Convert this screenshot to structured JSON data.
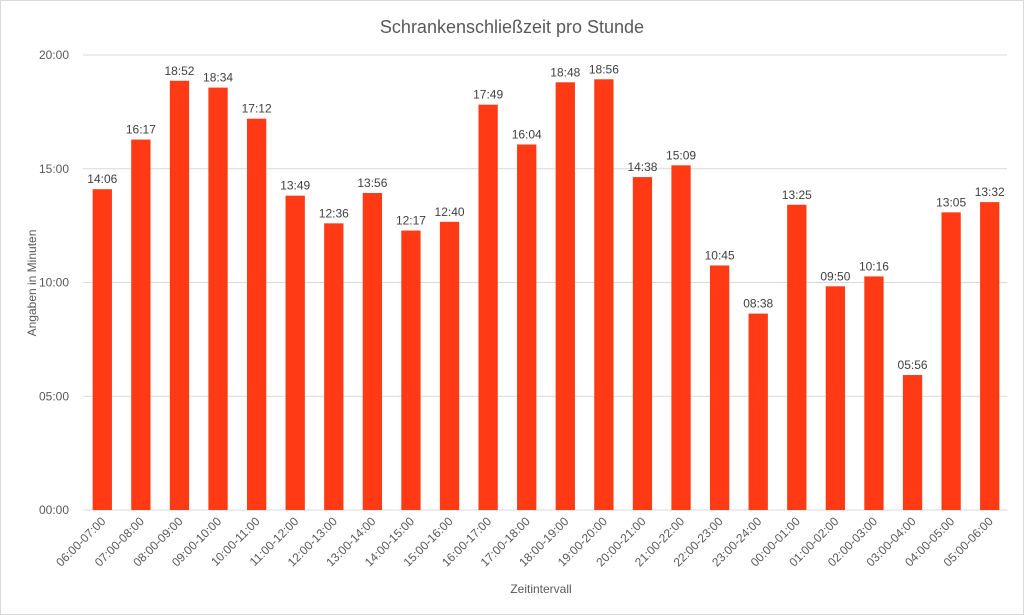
{
  "chart_data": {
    "type": "bar",
    "title": "Schrankenschließzeit  pro Stunde",
    "xlabel": "Zeitintervall",
    "ylabel": "Angaben in Minuten",
    "ylim": [
      0,
      20
    ],
    "yticks": [
      "00:00",
      "05:00",
      "10:00",
      "15:00",
      "20:00"
    ],
    "grid": true,
    "legend": "none",
    "bar_color": "#ff3a14",
    "categories": [
      "06:00-07:00",
      "07:00-08:00",
      "08:00-09:00",
      "09:00-10:00",
      "10:00-11:00",
      "11:00-12:00",
      "12:00-13:00",
      "13:00-14:00",
      "14:00-15:00",
      "15:00-16:00",
      "16:00-17:00",
      "17:00-18:00",
      "18:00-19:00",
      "19:00-20:00",
      "20:00-21:00",
      "21:00-22:00",
      "22:00-23:00",
      "23:00-24:00",
      "00:00-01:00",
      "01:00-02:00",
      "02:00-03:00",
      "03:00-04:00",
      "04:00-05:00",
      "05:00-06:00"
    ],
    "value_labels": [
      "14:06",
      "16:17",
      "18:52",
      "18:34",
      "17:12",
      "13:49",
      "12:36",
      "13:56",
      "12:17",
      "12:40",
      "17:49",
      "16:04",
      "18:48",
      "18:56",
      "14:38",
      "15:09",
      "10:45",
      "08:38",
      "13:25",
      "09:50",
      "10:16",
      "05:56",
      "13:05",
      "13:32"
    ],
    "values": [
      14.1,
      16.283,
      18.867,
      18.567,
      17.2,
      13.817,
      12.6,
      13.933,
      12.283,
      12.667,
      17.817,
      16.067,
      18.8,
      18.933,
      14.633,
      15.15,
      10.75,
      8.633,
      13.417,
      9.833,
      10.267,
      5.933,
      13.083,
      13.533
    ]
  }
}
